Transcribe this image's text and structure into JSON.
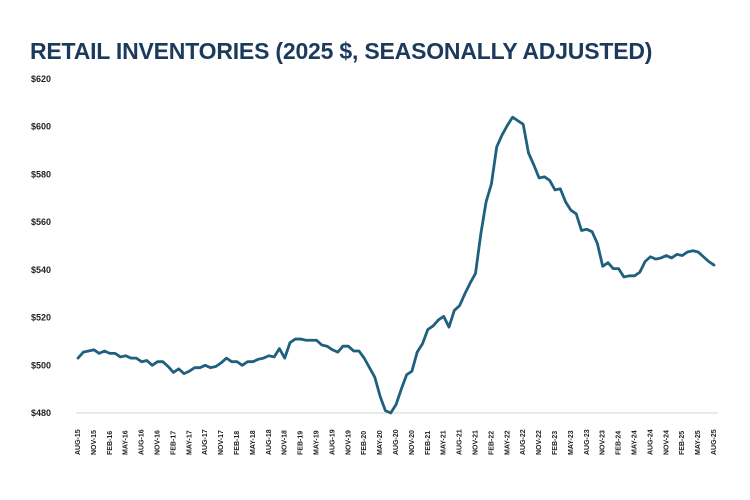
{
  "chart_data": {
    "type": "line",
    "title": "RETAIL INVENTORIES (2025 $, SEASONALLY ADJUSTED)",
    "xlabel": "",
    "ylabel": "",
    "ylim": [
      480,
      620
    ],
    "yticks": [
      480,
      500,
      520,
      540,
      560,
      580,
      600,
      620
    ],
    "ytick_labels": [
      "$480",
      "$500",
      "$520",
      "$540",
      "$560",
      "$580",
      "$600",
      "$620"
    ],
    "xtick_labels": [
      "AUG-15",
      "NOV-15",
      "FEB-16",
      "MAY-16",
      "AUG-16",
      "NOV-16",
      "FEB-17",
      "MAY-17",
      "AUG-17",
      "NOV-17",
      "FEB-18",
      "MAY-18",
      "AUG-18",
      "NOV-18",
      "FEB-19",
      "MAY-19",
      "AUG-19",
      "NOV-19",
      "FEB-20",
      "MAY-20",
      "AUG-20",
      "NOV-20",
      "FEB-21",
      "MAY-21",
      "AUG-21",
      "NOV-21",
      "FEB-22",
      "MAY-22",
      "AUG-22",
      "NOV-22",
      "FEB-23",
      "MAY-23",
      "AUG-23",
      "NOV-23",
      "FEB-24",
      "MAY-24",
      "AUG-24",
      "NOV-24",
      "FEB-25",
      "MAY-25",
      "AUG-25"
    ],
    "xtick_step_months": 3,
    "grid": false,
    "line_color": "#1f5f7f",
    "series": [
      {
        "name": "Retail Inventories",
        "values": [
          503,
          505.5,
          506,
          506.5,
          505,
          506,
          505,
          505,
          503.5,
          504,
          503,
          503,
          501.5,
          502,
          500,
          501.5,
          501.5,
          499.5,
          497,
          498.5,
          496.5,
          497.5,
          499,
          499,
          500,
          499,
          499.5,
          501,
          503,
          501.5,
          501.5,
          500,
          501.5,
          501.5,
          502.5,
          503,
          504,
          503.5,
          507,
          503,
          509.5,
          511,
          511,
          510.5,
          510.5,
          510.5,
          508.5,
          508,
          506.5,
          505.5,
          508,
          508,
          506,
          506,
          503,
          499,
          495,
          487,
          481,
          480,
          483.5,
          490,
          496,
          497.5,
          505.5,
          509,
          515,
          516.5,
          519,
          520.5,
          516,
          523,
          525,
          530,
          534.5,
          538.5,
          555,
          568.5,
          576,
          591.5,
          596.5,
          600.5,
          604,
          602.5,
          601,
          589,
          584,
          578.5,
          579,
          577.5,
          573.5,
          574,
          568.5,
          565,
          563.5,
          556.5,
          557,
          556,
          551,
          541.5,
          543,
          540.5,
          540.5,
          537,
          537.5,
          537.5,
          539,
          543.5,
          545.5,
          544.5,
          545,
          546,
          545,
          546.5,
          546,
          547.5,
          548,
          547.5,
          545.5,
          543.5,
          542
        ]
      }
    ]
  }
}
